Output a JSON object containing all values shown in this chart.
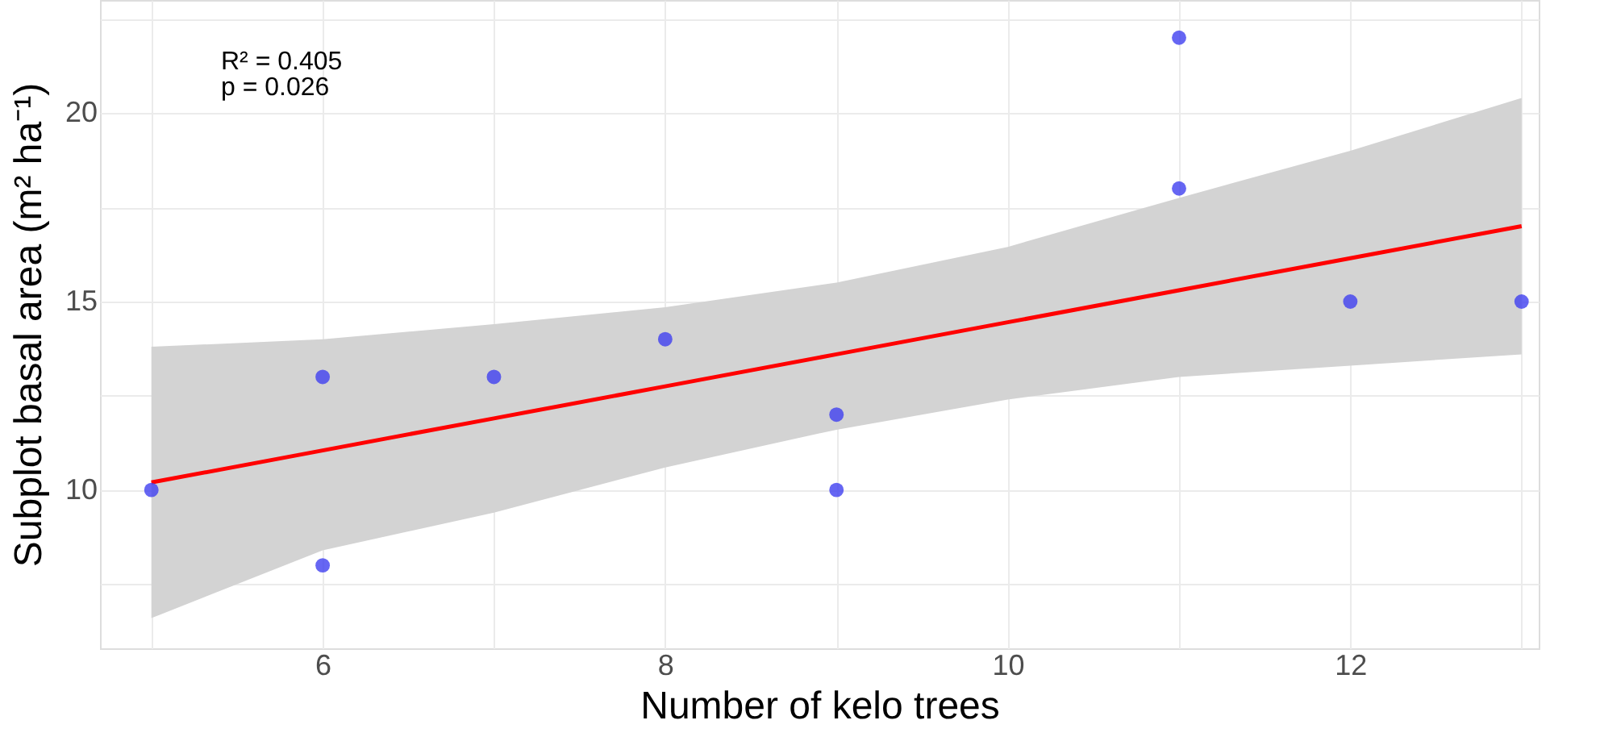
{
  "chart_data": {
    "type": "scatter",
    "xlabel": "Number of kelo trees",
    "ylabel": "Subplot basal area (m² ha⁻¹)",
    "annotations": [
      "R² = 0.405",
      "p = 0.026"
    ],
    "xlim": [
      4.7,
      13.1
    ],
    "ylim": [
      5.8,
      23
    ],
    "xticks": [
      {
        "value": 5,
        "label": null
      },
      6,
      {
        "value": 7,
        "label": null
      },
      8,
      {
        "value": 9,
        "label": null
      },
      10,
      {
        "value": 11,
        "label": null
      },
      12,
      {
        "value": 13,
        "label": null
      }
    ],
    "yticks": [
      {
        "value": 7.5,
        "label": null
      },
      10,
      {
        "value": 12.5,
        "label": null
      },
      15,
      {
        "value": 17.5,
        "label": null
      },
      20,
      {
        "value": 22.5,
        "label": null
      }
    ],
    "grid": true,
    "series": [
      {
        "type": "line",
        "color": "#ff0000",
        "x": [
          5,
          6,
          7,
          8,
          9,
          10,
          11,
          12,
          13
        ],
        "values": [
          10.2,
          11.05,
          11.9,
          12.75,
          13.6,
          14.45,
          15.3,
          16.15,
          17.0
        ],
        "lower": [
          6.6,
          8.4,
          9.4,
          10.6,
          11.6,
          12.4,
          13.0,
          13.3,
          13.6
        ],
        "upper": [
          13.8,
          14.0,
          14.4,
          14.85,
          15.5,
          16.45,
          17.75,
          19.0,
          20.4
        ]
      },
      {
        "color": "#4040f0",
        "marker": "circle",
        "x": [
          5,
          6,
          6,
          7,
          8,
          9,
          9,
          11,
          11,
          12,
          13
        ],
        "values": [
          10,
          13,
          8,
          13,
          14,
          12,
          10,
          22,
          18,
          15,
          15
        ]
      }
    ]
  }
}
